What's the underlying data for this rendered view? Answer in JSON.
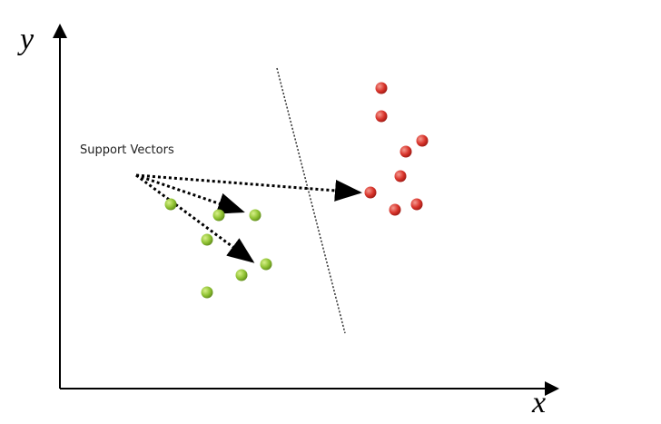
{
  "axes": {
    "y_label": "y",
    "x_label": "x"
  },
  "annotation": "Support Vectors"
}
